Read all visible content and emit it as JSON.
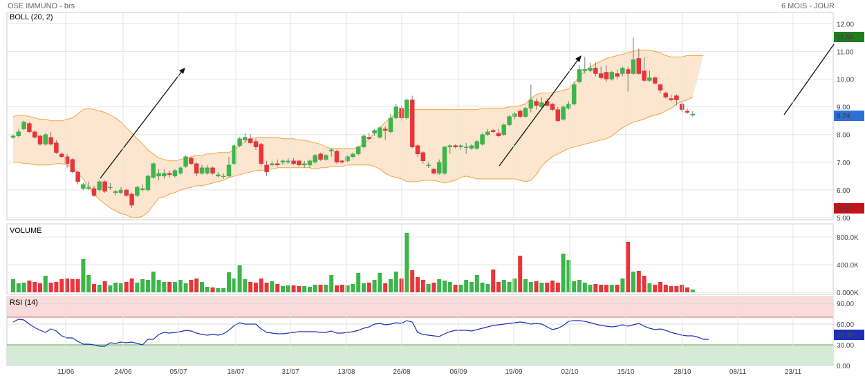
{
  "header": {
    "title": "OSE IMMUNO - brs",
    "period": "6 MOIS - JOUR"
  },
  "colors": {
    "up": "#3cb54a",
    "down": "#e8353b",
    "band_fill": "#fce6cf",
    "band_line": "#f0a342",
    "rsi_line": "#1a2fb5",
    "rsi_over": "#fadada",
    "rsi_under": "#d5ebd5",
    "last_tag": "#2d6fd6",
    "high_tag": "#1e7e1e",
    "low_tag": "#c0141a"
  },
  "chart_data": [
    {
      "type": "candlestick",
      "indicator_label": "BOLL (20, 2)",
      "ylim": [
        5,
        12.5
      ],
      "yticks": [
        "5.00",
        "6.00",
        "7.00",
        "8.00",
        "9.00",
        "10.00",
        "11.00",
        "12.00"
      ],
      "xtick_labels": [
        "11/06",
        "24/06",
        "05/07",
        "18/07",
        "31/07",
        "13/08",
        "26/08",
        "06/09",
        "19/09",
        "02/10",
        "15/10",
        "28/10",
        "08/11",
        "23/11"
      ],
      "last_price": "8.74",
      "max_price": "11.58",
      "min_price": "5.37",
      "ohlc": [
        [
          7.9,
          8.0,
          7.85,
          7.95
        ],
        [
          7.95,
          8.2,
          7.9,
          8.1
        ],
        [
          8.2,
          8.5,
          8.15,
          8.45
        ],
        [
          8.4,
          8.45,
          8.05,
          8.1
        ],
        [
          8.1,
          8.15,
          7.85,
          7.9
        ],
        [
          7.95,
          8.0,
          7.6,
          7.65
        ],
        [
          7.65,
          8.05,
          7.6,
          8.0
        ],
        [
          7.9,
          8.1,
          7.6,
          7.65
        ],
        [
          7.7,
          7.8,
          7.3,
          7.35
        ],
        [
          7.3,
          7.35,
          7.15,
          7.2
        ],
        [
          7.2,
          7.3,
          6.8,
          6.95
        ],
        [
          7.1,
          7.15,
          6.6,
          6.65
        ],
        [
          6.65,
          6.7,
          6.2,
          6.3
        ],
        [
          6.05,
          6.25,
          6.0,
          6.2
        ],
        [
          6.05,
          6.3,
          6.0,
          6.1
        ],
        [
          6.05,
          6.15,
          5.75,
          5.8
        ],
        [
          6.0,
          6.35,
          5.95,
          6.3
        ],
        [
          6.3,
          6.35,
          5.9,
          5.95
        ],
        [
          6.1,
          6.25,
          6.0,
          6.1
        ],
        [
          5.9,
          6.0,
          5.8,
          5.95
        ],
        [
          5.9,
          6.1,
          5.85,
          6.0
        ],
        [
          6.0,
          6.05,
          5.75,
          5.8
        ],
        [
          5.85,
          5.9,
          5.35,
          5.45
        ],
        [
          5.8,
          6.15,
          5.75,
          6.1
        ],
        [
          6.0,
          6.2,
          5.95,
          6.05
        ],
        [
          6.0,
          6.55,
          5.95,
          6.5
        ],
        [
          6.45,
          7.0,
          6.4,
          6.95
        ],
        [
          6.5,
          6.75,
          6.35,
          6.6
        ],
        [
          6.5,
          6.75,
          6.4,
          6.6
        ],
        [
          6.6,
          6.7,
          6.45,
          6.55
        ],
        [
          6.5,
          6.75,
          6.45,
          6.7
        ],
        [
          6.6,
          6.85,
          6.55,
          6.8
        ],
        [
          6.85,
          7.25,
          6.8,
          7.2
        ],
        [
          7.15,
          7.2,
          6.9,
          6.95
        ],
        [
          6.95,
          7.0,
          6.5,
          6.6
        ],
        [
          6.6,
          6.9,
          6.55,
          6.8
        ],
        [
          6.6,
          6.9,
          6.55,
          6.8
        ],
        [
          6.8,
          6.85,
          6.55,
          6.6
        ],
        [
          6.5,
          6.65,
          6.45,
          6.55
        ],
        [
          6.5,
          6.6,
          6.4,
          6.5
        ],
        [
          6.5,
          7.2,
          6.45,
          6.9
        ],
        [
          6.95,
          7.65,
          6.9,
          7.6
        ],
        [
          7.6,
          7.9,
          7.55,
          7.85
        ],
        [
          7.8,
          8.05,
          7.7,
          7.9
        ],
        [
          7.85,
          8.0,
          7.65,
          7.7
        ],
        [
          7.75,
          7.85,
          7.45,
          7.55
        ],
        [
          7.65,
          7.7,
          6.85,
          6.95
        ],
        [
          6.9,
          7.05,
          6.5,
          6.65
        ],
        [
          6.9,
          7.05,
          6.85,
          6.95
        ],
        [
          6.95,
          7.1,
          6.85,
          6.9
        ],
        [
          7.0,
          7.1,
          6.9,
          7.05
        ],
        [
          7.0,
          7.15,
          6.95,
          7.05
        ],
        [
          7.05,
          7.15,
          6.9,
          6.95
        ],
        [
          7.05,
          7.1,
          6.85,
          6.9
        ],
        [
          6.9,
          7.05,
          6.8,
          6.95
        ],
        [
          6.9,
          7.1,
          6.8,
          7.05
        ],
        [
          7.0,
          7.3,
          6.95,
          7.25
        ],
        [
          7.3,
          7.35,
          7.05,
          7.1
        ],
        [
          7.1,
          7.3,
          7.05,
          7.25
        ],
        [
          7.4,
          7.5,
          7.2,
          7.45
        ],
        [
          7.4,
          7.45,
          6.95,
          7.0
        ],
        [
          7.05,
          7.1,
          6.95,
          7.0
        ],
        [
          7.05,
          7.25,
          7.0,
          7.2
        ],
        [
          7.2,
          7.35,
          7.15,
          7.3
        ],
        [
          7.3,
          7.6,
          7.25,
          7.55
        ],
        [
          7.55,
          8.0,
          7.5,
          7.95
        ],
        [
          7.9,
          8.05,
          7.8,
          7.85
        ],
        [
          8.05,
          8.2,
          7.95,
          8.15
        ],
        [
          7.9,
          8.3,
          7.85,
          8.25
        ],
        [
          8.2,
          8.3,
          7.8,
          8.15
        ],
        [
          8.1,
          8.75,
          8.05,
          8.6
        ],
        [
          8.6,
          9.1,
          8.55,
          9.0
        ],
        [
          8.95,
          9.05,
          8.5,
          8.6
        ],
        [
          8.6,
          9.3,
          8.55,
          9.25
        ],
        [
          9.25,
          9.4,
          7.5,
          7.55
        ],
        [
          7.6,
          7.65,
          7.2,
          7.3
        ],
        [
          7.35,
          7.4,
          6.95,
          7.05
        ],
        [
          6.9,
          7.0,
          6.8,
          6.9
        ],
        [
          6.75,
          6.8,
          6.55,
          6.6
        ],
        [
          6.6,
          7.1,
          6.55,
          7.0
        ],
        [
          6.6,
          7.6,
          6.55,
          7.55
        ],
        [
          7.55,
          7.65,
          7.3,
          7.6
        ],
        [
          7.6,
          7.65,
          7.5,
          7.55
        ],
        [
          7.55,
          7.65,
          7.45,
          7.6
        ],
        [
          7.55,
          7.7,
          7.3,
          7.55
        ],
        [
          7.5,
          7.65,
          7.45,
          7.6
        ],
        [
          7.5,
          7.8,
          7.45,
          7.75
        ],
        [
          7.65,
          8.05,
          7.6,
          8.0
        ],
        [
          8.0,
          8.2,
          7.95,
          8.1
        ],
        [
          8.15,
          8.2,
          8.05,
          8.1
        ],
        [
          8.05,
          8.2,
          7.9,
          7.95
        ],
        [
          8.0,
          8.4,
          7.95,
          8.35
        ],
        [
          8.35,
          8.7,
          8.3,
          8.65
        ],
        [
          8.65,
          8.8,
          8.55,
          8.75
        ],
        [
          8.85,
          8.9,
          8.6,
          8.65
        ],
        [
          8.65,
          9.0,
          8.6,
          8.95
        ],
        [
          8.95,
          9.8,
          8.8,
          9.25
        ],
        [
          9.2,
          9.3,
          8.9,
          9.05
        ],
        [
          9.0,
          9.35,
          8.95,
          9.15
        ],
        [
          9.2,
          9.3,
          9.0,
          9.05
        ],
        [
          9.1,
          9.15,
          8.85,
          8.9
        ],
        [
          8.9,
          9.0,
          8.45,
          8.5
        ],
        [
          8.55,
          9.05,
          8.5,
          9.0
        ],
        [
          8.95,
          9.2,
          8.9,
          9.1
        ],
        [
          9.1,
          9.9,
          9.05,
          9.8
        ],
        [
          9.9,
          10.5,
          9.85,
          10.35
        ],
        [
          10.3,
          10.8,
          10.2,
          10.35
        ],
        [
          10.3,
          10.6,
          10.25,
          10.4
        ],
        [
          10.4,
          10.6,
          10.1,
          10.2
        ],
        [
          10.2,
          10.45,
          10.0,
          10.05
        ],
        [
          10.25,
          10.5,
          9.9,
          10.0
        ],
        [
          10.0,
          10.3,
          9.95,
          10.25
        ],
        [
          10.2,
          10.35,
          10.0,
          10.1
        ],
        [
          10.2,
          10.45,
          10.1,
          10.4
        ],
        [
          10.35,
          10.45,
          9.55,
          10.2
        ],
        [
          10.2,
          11.5,
          10.15,
          10.7
        ],
        [
          10.75,
          11.1,
          10.15,
          10.2
        ],
        [
          10.3,
          10.8,
          9.9,
          9.95
        ],
        [
          9.95,
          10.3,
          9.9,
          10.05
        ],
        [
          10.05,
          10.1,
          9.8,
          9.85
        ],
        [
          9.8,
          9.85,
          9.5,
          9.6
        ],
        [
          9.5,
          9.55,
          9.3,
          9.35
        ],
        [
          9.3,
          9.45,
          9.2,
          9.25
        ],
        [
          9.4,
          9.45,
          9.05,
          9.25
        ],
        [
          9.1,
          9.2,
          8.8,
          8.9
        ],
        [
          8.85,
          8.95,
          8.75,
          8.8
        ],
        [
          8.7,
          8.85,
          8.65,
          8.74
        ]
      ],
      "upper_band": [
        8.65,
        8.7,
        8.7,
        8.65,
        8.6,
        8.55,
        8.55,
        8.5,
        8.5,
        8.5,
        8.55,
        8.6,
        8.75,
        8.9,
        8.95,
        8.9,
        8.85,
        8.8,
        8.7,
        8.6,
        8.45,
        8.25,
        8.05,
        7.85,
        7.65,
        7.45,
        7.3,
        7.15,
        7.1,
        7.05,
        7.05,
        7.1,
        7.15,
        7.2,
        7.25,
        7.25,
        7.3,
        7.3,
        7.35,
        7.35,
        7.35,
        7.45,
        7.6,
        7.75,
        7.85,
        7.9,
        7.9,
        7.9,
        7.9,
        7.9,
        7.85,
        7.85,
        7.85,
        7.8,
        7.8,
        7.75,
        7.7,
        7.65,
        7.55,
        7.5,
        7.5,
        7.5,
        7.5,
        7.5,
        7.55,
        7.65,
        7.85,
        8.05,
        8.25,
        8.45,
        8.6,
        8.75,
        8.85,
        8.9,
        8.9,
        8.9,
        8.9,
        8.9,
        8.9,
        8.9,
        8.9,
        8.9,
        8.9,
        8.9,
        8.9,
        8.9,
        8.9,
        8.95,
        8.95,
        8.95,
        8.95,
        8.95,
        9.0,
        9.0,
        9.05,
        9.1,
        9.3,
        9.45,
        9.5,
        9.5,
        9.5,
        9.55,
        9.6,
        9.65,
        9.85,
        10.1,
        10.3,
        10.45,
        10.55,
        10.65,
        10.75,
        10.8,
        10.85,
        10.9,
        10.95,
        11.0,
        11.05,
        11.05,
        11.05,
        11.0,
        10.95,
        10.85,
        10.8,
        10.8,
        10.8,
        10.85,
        10.85,
        10.85,
        10.85
      ],
      "lower_band": [
        7.0,
        7.0,
        6.95,
        6.95,
        6.9,
        6.9,
        6.9,
        6.9,
        6.95,
        6.95,
        6.9,
        6.8,
        6.6,
        6.4,
        6.1,
        5.85,
        5.65,
        5.5,
        5.35,
        5.25,
        5.15,
        5.1,
        5.0,
        5.0,
        5.05,
        5.2,
        5.45,
        5.7,
        5.75,
        5.85,
        5.9,
        6.0,
        6.05,
        6.1,
        6.15,
        6.15,
        6.2,
        6.25,
        6.3,
        6.35,
        6.45,
        6.5,
        6.55,
        6.6,
        6.65,
        6.7,
        6.7,
        6.75,
        6.75,
        6.8,
        6.8,
        6.8,
        6.8,
        6.8,
        6.8,
        6.8,
        6.75,
        6.8,
        6.8,
        6.85,
        6.85,
        6.85,
        6.9,
        6.9,
        6.9,
        6.9,
        6.9,
        6.85,
        6.75,
        6.6,
        6.5,
        6.45,
        6.4,
        6.3,
        6.3,
        6.3,
        6.35,
        6.35,
        6.35,
        6.3,
        6.25,
        6.3,
        6.35,
        6.45,
        6.5,
        6.45,
        6.4,
        6.4,
        6.4,
        6.4,
        6.4,
        6.4,
        6.4,
        6.4,
        6.35,
        6.3,
        6.35,
        6.55,
        6.85,
        7.05,
        7.2,
        7.3,
        7.4,
        7.5,
        7.55,
        7.6,
        7.65,
        7.7,
        7.75,
        7.8,
        7.85,
        7.95,
        8.1,
        8.25,
        8.35,
        8.45,
        8.5,
        8.55,
        8.65,
        8.7,
        8.75,
        8.85,
        8.95,
        9.1,
        9.2,
        9.25,
        9.35
      ]
    },
    {
      "type": "bar",
      "indicator_label": "VOLUME",
      "yticks": [
        "0.000K",
        "400.0K",
        "800.0K"
      ],
      "ylim": [
        0,
        1000
      ],
      "values_k": [
        190,
        130,
        140,
        170,
        150,
        130,
        240,
        140,
        150,
        190,
        200,
        190,
        190,
        480,
        250,
        120,
        110,
        160,
        100,
        140,
        130,
        150,
        200,
        140,
        190,
        180,
        300,
        180,
        150,
        150,
        150,
        180,
        130,
        180,
        200,
        150,
        80,
        70,
        60,
        60,
        290,
        200,
        390,
        190,
        150,
        140,
        200,
        140,
        160,
        120,
        90,
        100,
        100,
        90,
        90,
        80,
        110,
        110,
        110,
        250,
        100,
        110,
        100,
        120,
        280,
        130,
        140,
        180,
        280,
        130,
        190,
        300,
        200,
        860,
        320,
        220,
        180,
        120,
        140,
        190,
        170,
        150,
        110,
        110,
        180,
        150,
        250,
        140,
        120,
        330,
        150,
        180,
        150,
        200,
        530,
        190,
        150,
        160,
        140,
        140,
        170,
        140,
        560,
        470,
        160,
        180,
        140,
        110,
        120,
        110,
        110,
        110,
        110,
        200,
        730,
        300,
        310,
        240,
        130,
        110,
        150,
        110,
        90,
        90,
        110,
        70,
        40
      ]
    },
    {
      "type": "line",
      "indicator_label": "RSI (14)",
      "last_value": "38.36",
      "yticks": [
        "0.00",
        "30.00",
        "60.00",
        "90.00"
      ],
      "ylim": [
        0,
        100
      ],
      "values": [
        63,
        67,
        66,
        60,
        55,
        51,
        48,
        53,
        50,
        43,
        40,
        40,
        35,
        31,
        31,
        30,
        28,
        28,
        33,
        32,
        34,
        33,
        34,
        32,
        30,
        38,
        38,
        45,
        48,
        47,
        48,
        49,
        51,
        50,
        47,
        45,
        44,
        45,
        44,
        46,
        51,
        58,
        62,
        60,
        60,
        60,
        53,
        48,
        47,
        46,
        46,
        47,
        48,
        49,
        49,
        49,
        49,
        48,
        48,
        50,
        47,
        47,
        48,
        49,
        51,
        54,
        56,
        60,
        61,
        59,
        60,
        62,
        61,
        65,
        63,
        48,
        45,
        44,
        43,
        42,
        46,
        49,
        51,
        51,
        51,
        50,
        52,
        54,
        56,
        58,
        59,
        60,
        61,
        62,
        63,
        62,
        60,
        61,
        60,
        56,
        52,
        54,
        58,
        64,
        65,
        65,
        64,
        62,
        60,
        58,
        57,
        56,
        57,
        59,
        57,
        59,
        61,
        57,
        54,
        52,
        53,
        51,
        48,
        46,
        44,
        43,
        43,
        41,
        38,
        38
      ]
    }
  ]
}
